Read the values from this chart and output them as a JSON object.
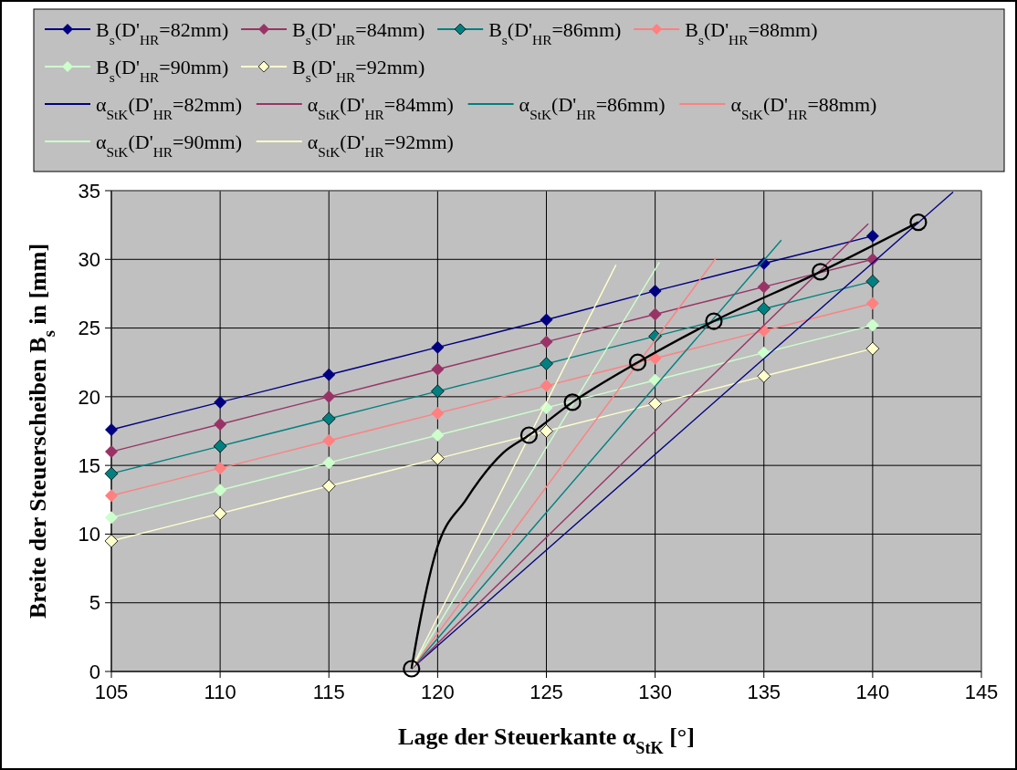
{
  "chart_data": {
    "type": "line",
    "xlabel": "Lage der Steuerkante α$_{StK}$ [°]",
    "ylabel": "Breite der Steuerscheiben B$_{s}$ in [mm]",
    "x": [
      105,
      110,
      115,
      120,
      125,
      130,
      135,
      140
    ],
    "xlim": [
      105,
      145
    ],
    "xticks": [
      105,
      110,
      115,
      120,
      125,
      130,
      135,
      140,
      145
    ],
    "ylim": [
      0,
      35
    ],
    "yticks": [
      0,
      5,
      10,
      15,
      20,
      25,
      30,
      35
    ],
    "grid": true,
    "legend": "top",
    "series": [
      {
        "name": "B$_{s}$(D'$_{HR}$=82mm)",
        "color": "#000080",
        "marker": "diamond",
        "values": [
          17.6,
          19.6,
          21.6,
          23.6,
          25.6,
          27.7,
          29.7,
          31.7
        ]
      },
      {
        "name": "B$_{s}$(D'$_{HR}$=84mm)",
        "color": "#993366",
        "marker": "diamond",
        "values": [
          16.0,
          18.0,
          20.0,
          22.0,
          24.0,
          26.0,
          28.0,
          30.0
        ]
      },
      {
        "name": "B$_{s}$(D'$_{HR}$=86mm)",
        "color": "#008080",
        "marker": "diamond",
        "values": [
          14.4,
          16.4,
          18.4,
          20.4,
          22.4,
          24.4,
          26.4,
          28.4
        ]
      },
      {
        "name": "B$_{s}$(D'$_{HR}$=88mm)",
        "color": "#ff8080",
        "marker": "diamond",
        "values": [
          12.8,
          14.8,
          16.8,
          18.8,
          20.8,
          22.8,
          24.8,
          26.8
        ]
      },
      {
        "name": "B$_{s}$(D'$_{HR}$=90mm)",
        "color": "#ccffcc",
        "marker": "diamond",
        "values": [
          11.2,
          13.2,
          15.2,
          17.2,
          19.2,
          21.2,
          23.2,
          25.2
        ]
      },
      {
        "name": "B$_{s}$(D'$_{HR}$=92mm)",
        "color": "#ffffcc",
        "marker": "diamond",
        "values": [
          9.5,
          11.5,
          13.5,
          15.5,
          17.5,
          19.5,
          21.5,
          23.5
        ]
      },
      {
        "name": "α$_{StK}$(D'$_{HR}$=82mm)",
        "color": "#000080",
        "marker": "none",
        "x": [
          118.8,
          143.7
        ],
        "values": [
          0.2,
          34.9
        ]
      },
      {
        "name": "α$_{StK}$(D'$_{HR}$=84mm)",
        "color": "#993366",
        "marker": "none",
        "x": [
          118.8,
          139.8
        ],
        "values": [
          0.2,
          32.6
        ]
      },
      {
        "name": "α$_{StK}$(D'$_{HR}$=86mm)",
        "color": "#008080",
        "marker": "none",
        "x": [
          118.8,
          135.8
        ],
        "values": [
          0.2,
          31.4
        ]
      },
      {
        "name": "α$_{StK}$(D'$_{HR}$=88mm)",
        "color": "#ff8080",
        "marker": "none",
        "x": [
          118.8,
          132.8
        ],
        "values": [
          0.2,
          30.1
        ]
      },
      {
        "name": "α$_{StK}$(D'$_{HR}$=90mm)",
        "color": "#ccffcc",
        "marker": "none",
        "x": [
          118.8,
          130.2
        ],
        "values": [
          0.2,
          29.8
        ]
      },
      {
        "name": "α$_{StK}$(D'$_{HR}$=92mm)",
        "color": "#ffffcc",
        "marker": "none",
        "x": [
          118.8,
          128.2
        ],
        "values": [
          0.2,
          29.6
        ]
      },
      {
        "color": "#000000",
        "marker": "none",
        "x": [
          118.8,
          119.1,
          119.9,
          121.3,
          123.0,
          124.2,
          126.2,
          129.2,
          132.7,
          137.6,
          142.1
        ],
        "values": [
          0.2,
          2.9,
          8.6,
          12.5,
          15.9,
          17.2,
          19.6,
          22.5,
          25.5,
          29.1,
          32.7
        ]
      },
      {
        "type": "scatter",
        "color": "#000000",
        "marker": "circle",
        "x": [
          118.8,
          124.2,
          126.2,
          129.2,
          132.7,
          137.6,
          142.1
        ],
        "values": [
          0.2,
          17.2,
          19.6,
          22.5,
          25.5,
          29.1,
          32.7
        ]
      }
    ]
  }
}
